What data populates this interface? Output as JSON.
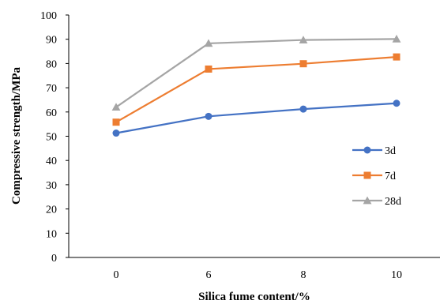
{
  "chart_data": {
    "type": "line",
    "title": "",
    "xlabel": "Silica fume content/%",
    "ylabel": "Compressive strength/MPa",
    "categories": [
      "0",
      "6",
      "8",
      "10"
    ],
    "ylim": [
      0,
      100
    ],
    "yticks": [
      "0",
      "10",
      "20",
      "30",
      "40",
      "50",
      "60",
      "70",
      "80",
      "90",
      "100"
    ],
    "grid": false,
    "legend_position": "right",
    "series": [
      {
        "name": "3d",
        "values": [
          51.3,
          58.2,
          61.2,
          63.6
        ],
        "color": "#4472C4",
        "marker": "circle"
      },
      {
        "name": "7d",
        "values": [
          55.8,
          77.7,
          79.9,
          82.7
        ],
        "color": "#ED7D31",
        "marker": "square"
      },
      {
        "name": "28d",
        "values": [
          62.0,
          88.3,
          89.7,
          90.1
        ],
        "color": "#A5A5A5",
        "marker": "triangle"
      }
    ]
  }
}
